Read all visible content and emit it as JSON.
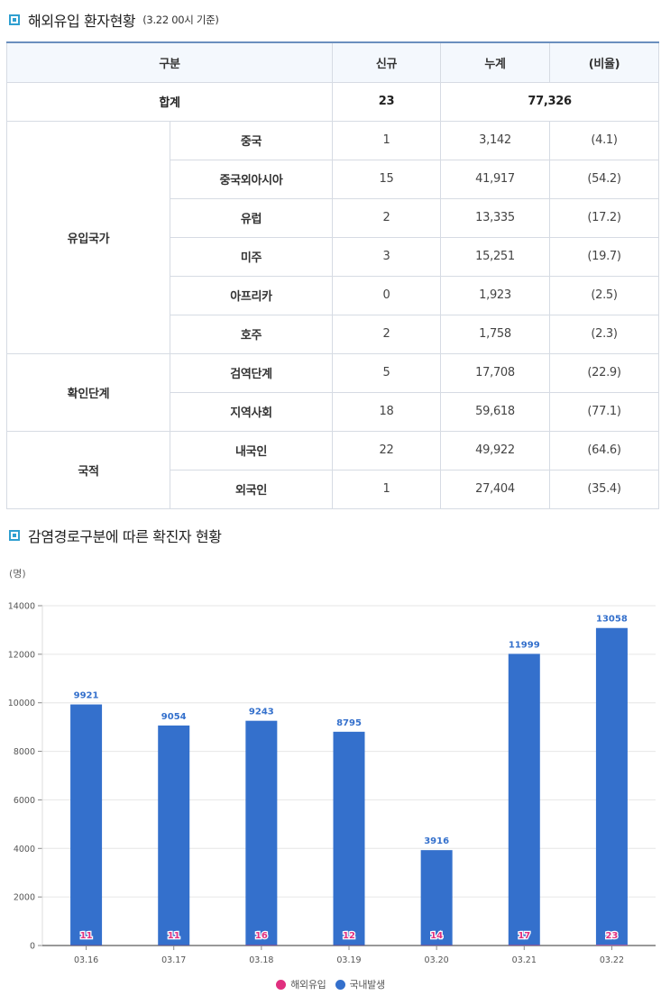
{
  "section1": {
    "title": "해외유입 환자현황",
    "subtitle": "(3.22 00시 기준)"
  },
  "table": {
    "headers": [
      "구분",
      "신규",
      "누계",
      "(비율)"
    ],
    "total": {
      "label": "합계",
      "new": "23",
      "cumulative": "77,326"
    },
    "groups": [
      {
        "label": "유입국가",
        "rows": [
          {
            "label": "중국",
            "new": "1",
            "cumulative": "3,142",
            "ratio": "(4.1)"
          },
          {
            "label": "중국외아시아",
            "new": "15",
            "cumulative": "41,917",
            "ratio": "(54.2)"
          },
          {
            "label": "유럽",
            "new": "2",
            "cumulative": "13,335",
            "ratio": "(17.2)"
          },
          {
            "label": "미주",
            "new": "3",
            "cumulative": "15,251",
            "ratio": "(19.7)"
          },
          {
            "label": "아프리카",
            "new": "0",
            "cumulative": "1,923",
            "ratio": "(2.5)"
          },
          {
            "label": "호주",
            "new": "2",
            "cumulative": "1,758",
            "ratio": "(2.3)"
          }
        ]
      },
      {
        "label": "확인단계",
        "rows": [
          {
            "label": "검역단계",
            "new": "5",
            "cumulative": "17,708",
            "ratio": "(22.9)"
          },
          {
            "label": "지역사회",
            "new": "18",
            "cumulative": "59,618",
            "ratio": "(77.1)"
          }
        ]
      },
      {
        "label": "국적",
        "rows": [
          {
            "label": "내국인",
            "new": "22",
            "cumulative": "49,922",
            "ratio": "(64.6)"
          },
          {
            "label": "외국인",
            "new": "1",
            "cumulative": "27,404",
            "ratio": "(35.4)"
          }
        ]
      }
    ]
  },
  "section2": {
    "title": "감염경로구분에 따른 확진자 현황"
  },
  "colors": {
    "overseas": "#e0307f",
    "domestic": "#3470cc",
    "overseas_label": "#e0307f",
    "domestic_label": "#3470cc"
  },
  "chart_data": {
    "type": "bar",
    "unit_label": "(명)",
    "categories": [
      "03.16",
      "03.17",
      "03.18",
      "03.19",
      "03.20",
      "03.21",
      "03.22"
    ],
    "series": [
      {
        "name": "해외유입",
        "values": [
          11,
          11,
          16,
          12,
          14,
          17,
          23
        ]
      },
      {
        "name": "국내발생",
        "values": [
          9921,
          9054,
          9243,
          8795,
          3916,
          11999,
          13058
        ]
      }
    ],
    "ylim": [
      0,
      14000
    ],
    "yticks": [
      0,
      2000,
      4000,
      6000,
      8000,
      10000,
      12000,
      14000
    ],
    "grid": true,
    "legend": "bottom-center"
  }
}
